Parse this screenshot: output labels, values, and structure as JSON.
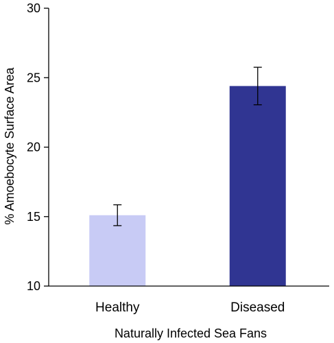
{
  "chart_data": {
    "type": "bar",
    "title": "",
    "xlabel": "Naturally Infected Sea Fans",
    "ylabel": "% Amoebocyte Surface Area",
    "categories": [
      "Healthy",
      "Diseased"
    ],
    "values": [
      15.1,
      24.4
    ],
    "error": [
      0.75,
      1.35
    ],
    "ylim": [
      10,
      30
    ],
    "yticks": [
      10,
      15,
      20,
      25,
      30
    ],
    "grid": false,
    "legend": "none",
    "bar_colors": [
      "#c8cbf5",
      "#303592"
    ]
  }
}
